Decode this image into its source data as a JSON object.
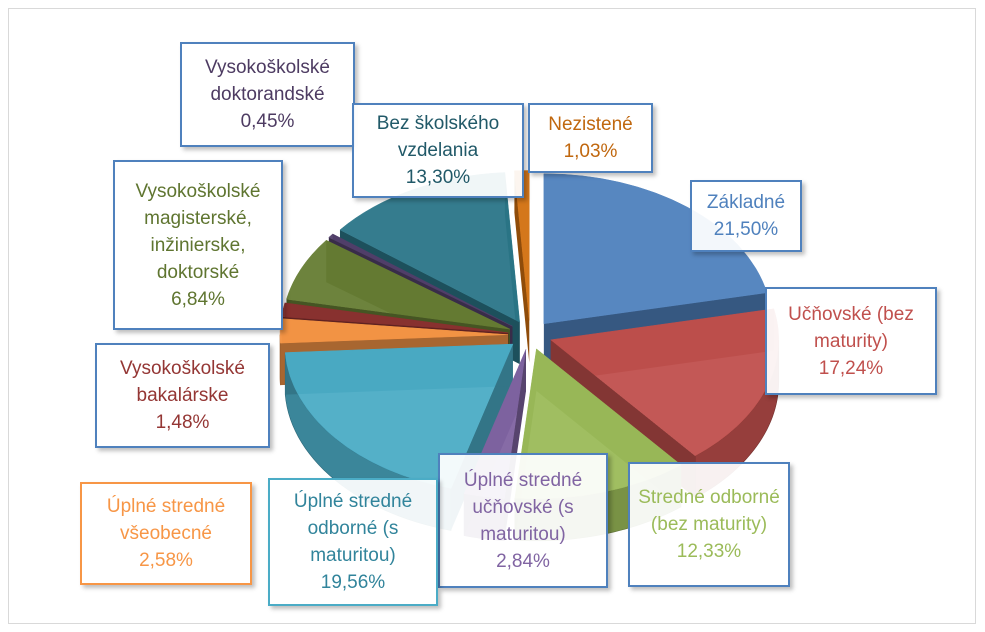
{
  "chart_data": {
    "type": "pie",
    "categories": [
      "Základné",
      "Učňovské (bez maturity)",
      "Stredné odborné (bez maturity)",
      "Úplné stredné učňovské (s maturitou)",
      "Úplné stredné odborné (s maturitou)",
      "Úplné stredné všeobecné",
      "Vysokoškolské bakalárske",
      "Vysokoškolské magisterské, inžinierske, doktorské",
      "Vysokoškolské doktorandské",
      "Bez školského vzdelania",
      "Nezistené"
    ],
    "values": [
      21.5,
      17.24,
      12.33,
      2.84,
      19.56,
      2.58,
      1.48,
      6.84,
      0.45,
      13.3,
      1.03
    ],
    "value_labels": [
      "21,50%",
      "17,24%",
      "12,33%",
      "2,84%",
      "19,56%",
      "2,58%",
      "1,48%",
      "6,84%",
      "0,45%",
      "13,30%",
      "1,03%"
    ],
    "colors": [
      "#4f81bd",
      "#c0504d",
      "#9bbb59",
      "#8064a2",
      "#4bacc6",
      "#f79646",
      "#8b3230",
      "#667d33",
      "#52406b",
      "#2b7688",
      "#d2700f"
    ]
  }
}
